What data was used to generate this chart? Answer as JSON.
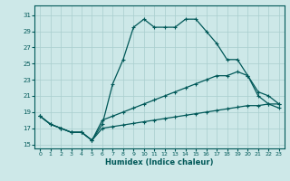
{
  "xlabel": "Humidex (Indice chaleur)",
  "bg_color": "#cde8e8",
  "grid_color": "#a8cece",
  "line_color": "#005858",
  "xlim": [
    -0.5,
    23.5
  ],
  "ylim": [
    14.5,
    32.2
  ],
  "xticks": [
    0,
    1,
    2,
    3,
    4,
    5,
    6,
    7,
    8,
    9,
    10,
    11,
    12,
    13,
    14,
    15,
    16,
    17,
    18,
    19,
    20,
    21,
    22,
    23
  ],
  "yticks": [
    15,
    17,
    19,
    21,
    23,
    25,
    27,
    29,
    31
  ],
  "curve_x": [
    0,
    1,
    2,
    3,
    4,
    5,
    6,
    7,
    8,
    9,
    10,
    11,
    12,
    13,
    14,
    15,
    16,
    17,
    18,
    19,
    20,
    21,
    22,
    23
  ],
  "curve_y": [
    18.5,
    17.5,
    17.0,
    16.5,
    16.5,
    15.5,
    17.5,
    22.5,
    25.5,
    29.5,
    30.5,
    29.5,
    29.5,
    29.5,
    30.5,
    30.5,
    29.0,
    27.5,
    25.5,
    25.5,
    23.5,
    21.0,
    20.0,
    19.5
  ],
  "line2_x": [
    0,
    1,
    2,
    3,
    4,
    5,
    6,
    7,
    8,
    9,
    10,
    11,
    12,
    13,
    14,
    15,
    16,
    17,
    18,
    19,
    20,
    21,
    22,
    23
  ],
  "line2_y": [
    18.5,
    17.5,
    17.0,
    16.5,
    16.5,
    15.5,
    18.0,
    18.5,
    19.0,
    19.5,
    20.0,
    20.5,
    21.0,
    21.5,
    22.0,
    22.5,
    23.0,
    23.5,
    23.5,
    24.0,
    23.5,
    21.5,
    21.0,
    20.0
  ],
  "line3_x": [
    0,
    1,
    2,
    3,
    4,
    5,
    6,
    7,
    8,
    9,
    10,
    11,
    12,
    13,
    14,
    15,
    16,
    17,
    18,
    19,
    20,
    21,
    22,
    23
  ],
  "line3_y": [
    18.5,
    17.5,
    17.0,
    16.5,
    16.5,
    15.5,
    17.0,
    17.2,
    17.4,
    17.6,
    17.8,
    18.0,
    18.2,
    18.4,
    18.6,
    18.8,
    19.0,
    19.2,
    19.4,
    19.6,
    19.8,
    19.8,
    20.0,
    20.0
  ]
}
